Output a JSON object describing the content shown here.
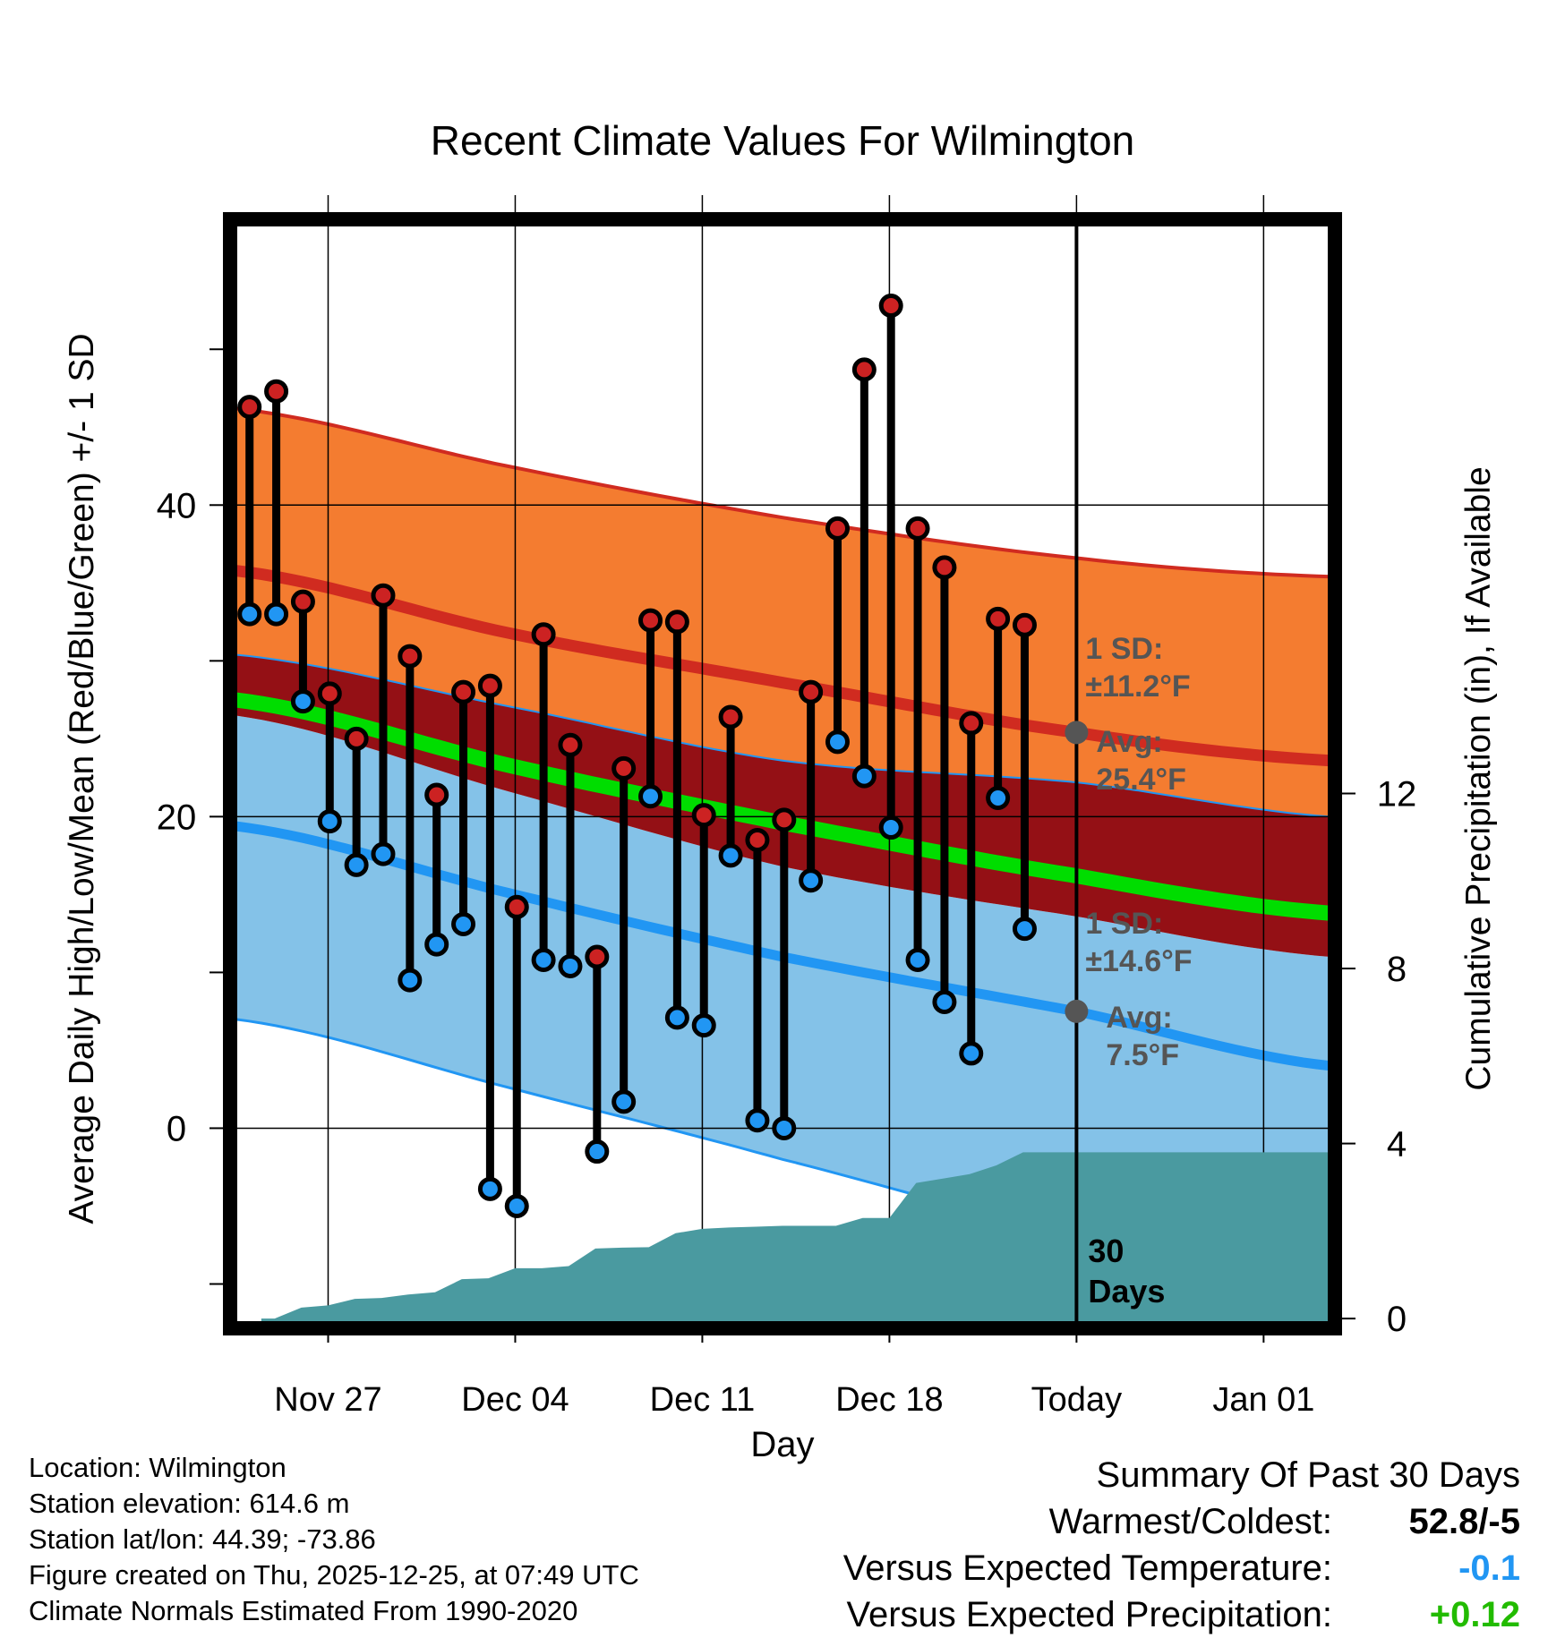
{
  "chart_data": {
    "type": "line",
    "title": "Recent Climate Values For Wilmington",
    "xlabel": "Day",
    "ylabel": "Average Daily High/Low/Mean (Red/Blue/Green) +/- 1 SD",
    "y2label": "Cumulative Precipitation (in), If Available",
    "ylim": [
      -12.5,
      58
    ],
    "y2lim": [
      -0.1,
      25
    ],
    "xlim": [
      -2.5,
      38.5
    ],
    "x_ticks": [
      {
        "x": 1,
        "label": "Nov 27"
      },
      {
        "x": 8,
        "label": "Dec 04"
      },
      {
        "x": 15,
        "label": "Dec 11"
      },
      {
        "x": 22,
        "label": "Dec 18"
      },
      {
        "x": 29,
        "label": "Today"
      },
      {
        "x": 36,
        "label": "Jan 01"
      }
    ],
    "y_ticks": [
      "0",
      "20",
      "40"
    ],
    "y2_ticks": [
      "0",
      "4",
      "8",
      "12"
    ],
    "today_x": 29,
    "window_label": [
      "30",
      "Days"
    ],
    "normal_high": {
      "x": [
        -2.5,
        8,
        18,
        29,
        38.5
      ],
      "avg": [
        35.8,
        31.7,
        28.6,
        25.4,
        23.6
      ],
      "upper": [
        46.2,
        42.4,
        39.2,
        36.6,
        35.4
      ],
      "lower": [
        30.4,
        27.0,
        23.6,
        22.2,
        20.0
      ]
    },
    "normal_low": {
      "x": [
        -2.5,
        8,
        18,
        29,
        38.5
      ],
      "avg": [
        19.4,
        15.0,
        11.0,
        7.5,
        4.0
      ],
      "upper": [
        26.5,
        21.5,
        16.8,
        13.6,
        11.0
      ],
      "lower": [
        7.0,
        2.5,
        -2.0,
        -7.0,
        -11.0
      ]
    },
    "normal_mean": {
      "x": [
        -2.5,
        8,
        18,
        29,
        38.5
      ],
      "avg": [
        27.5,
        23.2,
        19.6,
        16.2,
        13.8
      ]
    },
    "sd_high_label": [
      "1 SD:",
      "±11.2°F"
    ],
    "avg_high_label": [
      "Avg:",
      "25.4°F"
    ],
    "sd_low_label": [
      "1 SD:",
      "±14.6°F"
    ],
    "avg_low_label": [
      "Avg:",
      "7.5°F"
    ],
    "series": [
      {
        "name": "Daily High",
        "color": "#cc2222",
        "values": [
          46.3,
          47.3,
          33.8,
          27.9,
          25.0,
          34.2,
          30.3,
          21.4,
          28.0,
          28.4,
          14.2,
          31.7,
          24.6,
          11.0,
          23.1,
          32.6,
          32.5,
          20.1,
          26.4,
          18.5,
          19.8,
          28.0,
          38.5,
          48.7,
          52.8,
          38.5,
          36.0,
          26.0,
          32.7,
          32.3
        ]
      },
      {
        "name": "Daily Low",
        "color": "#2196f3",
        "values": [
          33.0,
          33.0,
          27.4,
          19.7,
          16.9,
          17.6,
          9.5,
          11.8,
          13.1,
          -3.9,
          -5.0,
          10.8,
          10.4,
          -1.5,
          1.7,
          21.3,
          7.1,
          6.6,
          17.5,
          0.5,
          0.0,
          15.9,
          24.8,
          22.6,
          19.3,
          10.8,
          8.1,
          4.8,
          21.2,
          12.8
        ]
      },
      {
        "name": "Cumulative Precipitation",
        "values": [
          0.0,
          0.25,
          0.3,
          0.45,
          0.47,
          0.55,
          0.6,
          0.9,
          0.92,
          1.15,
          1.15,
          1.2,
          1.6,
          1.62,
          1.63,
          1.95,
          2.05,
          2.08,
          2.1,
          2.12,
          2.12,
          2.12,
          2.3,
          2.3,
          3.1,
          3.2,
          3.3,
          3.5,
          3.8,
          3.8
        ]
      }
    ]
  },
  "info": {
    "location": "Location: Wilmington",
    "elevation": "Station elevation: 614.6 m",
    "latlon": "Station lat/lon: 44.39; -73.86",
    "created": "Figure created on Thu, 2025-12-25, at 07:49 UTC",
    "normals": "Climate Normals Estimated From 1990-2020"
  },
  "summary": {
    "heading": "Summary Of Past 30 Days",
    "warm_cold_label": "Warmest/Coldest:",
    "warm_cold_value": "52.8/-5",
    "temp_label": "Versus Expected Temperature:",
    "temp_value": "-0.1",
    "temp_color": "#2196f3",
    "precip_label": "Versus Expected Precipitation:",
    "precip_value": "+0.12",
    "precip_color": "#22bb00"
  },
  "colors": {
    "high_band": "#f47c30",
    "high_line": "#d02b20",
    "mean_band": "#941015",
    "mean_line": "#00dd00",
    "low_band": "#84c2e8",
    "low_line": "#2196f3",
    "precip": "#4a9aa0",
    "annotation": "#555555"
  }
}
